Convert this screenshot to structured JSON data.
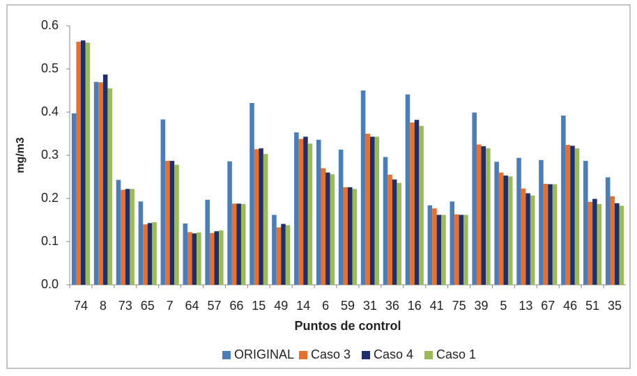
{
  "chart_data": {
    "type": "bar",
    "y_label": "mg/m3",
    "x_label": "Puntos de control",
    "categories": [
      "74",
      "8",
      "73",
      "65",
      "7",
      "64",
      "57",
      "66",
      "15",
      "49",
      "14",
      "6",
      "59",
      "31",
      "36",
      "16",
      "41",
      "75",
      "39",
      "5",
      "13",
      "67",
      "46",
      "51",
      "35"
    ],
    "series": [
      {
        "name": "ORIGINAL",
        "color": "#4a7ebb",
        "values": [
          0.397,
          0.47,
          0.243,
          0.193,
          0.383,
          0.142,
          0.197,
          0.286,
          0.421,
          0.162,
          0.353,
          0.336,
          0.313,
          0.45,
          0.296,
          0.441,
          0.184,
          0.193,
          0.399,
          0.285,
          0.294,
          0.289,
          0.392,
          0.287,
          0.249
        ]
      },
      {
        "name": "Caso 3",
        "color": "#e8702a",
        "values": [
          0.563,
          0.469,
          0.22,
          0.14,
          0.287,
          0.122,
          0.12,
          0.188,
          0.314,
          0.133,
          0.338,
          0.27,
          0.226,
          0.35,
          0.255,
          0.376,
          0.177,
          0.163,
          0.325,
          0.26,
          0.223,
          0.234,
          0.324,
          0.192,
          0.205
        ]
      },
      {
        "name": "Caso 4",
        "color": "#1f2f6e",
        "values": [
          0.566,
          0.487,
          0.222,
          0.143,
          0.287,
          0.119,
          0.124,
          0.188,
          0.316,
          0.141,
          0.343,
          0.26,
          0.226,
          0.343,
          0.244,
          0.382,
          0.162,
          0.162,
          0.321,
          0.253,
          0.212,
          0.233,
          0.322,
          0.199,
          0.189
        ]
      },
      {
        "name": "Caso 1",
        "color": "#9bbb59",
        "values": [
          0.561,
          0.455,
          0.222,
          0.145,
          0.278,
          0.121,
          0.126,
          0.187,
          0.303,
          0.138,
          0.327,
          0.256,
          0.222,
          0.343,
          0.236,
          0.368,
          0.162,
          0.162,
          0.316,
          0.251,
          0.207,
          0.233,
          0.316,
          0.187,
          0.183
        ]
      }
    ],
    "ylim": [
      0,
      0.6
    ],
    "yticks": [
      {
        "value": 0,
        "label": "0.0"
      },
      0.1,
      0.2,
      0.3,
      0.4,
      0.5,
      0.6
    ],
    "grid": false,
    "legend": "bottom"
  }
}
